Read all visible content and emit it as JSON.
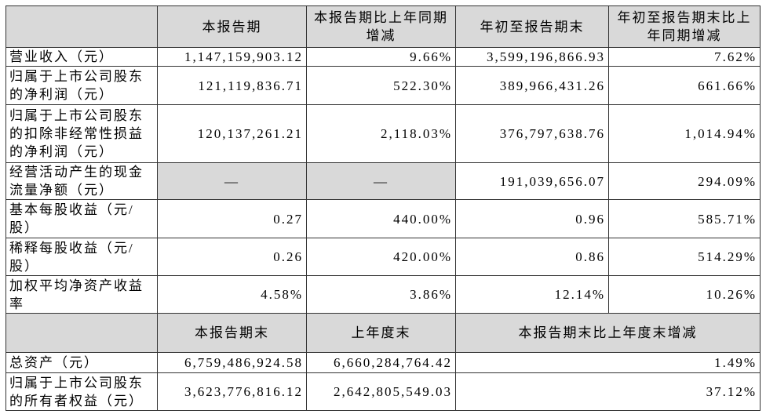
{
  "table": {
    "header": [
      "本报告期",
      "本报告期比上年同期增减",
      "年初至报告期末",
      "年初至报告期末比上年同期增减"
    ],
    "rows": [
      [
        "营业收入（元）",
        "1,147,159,903.12",
        "9.66%",
        "3,599,196,866.93",
        "7.62%"
      ],
      [
        "归属于上市公司股东的净利润（元）",
        "121,119,836.71",
        "522.30%",
        "389,966,431.26",
        "661.66%"
      ],
      [
        "归属于上市公司股东的扣除非经常性损益的净利润（元）",
        "120,137,261.21",
        "2,118.03%",
        "376,797,638.76",
        "1,014.94%"
      ],
      [
        "经营活动产生的现金流量净额（元）",
        "—",
        "—",
        "191,039,656.07",
        "294.09%"
      ],
      [
        "基本每股收益（元/股）",
        "0.27",
        "440.00%",
        "0.96",
        "585.71%"
      ],
      [
        "稀释每股收益（元/股）",
        "0.26",
        "420.00%",
        "0.86",
        "514.29%"
      ],
      [
        "加权平均净资产收益率",
        "4.58%",
        "3.86%",
        "12.14%",
        "10.26%"
      ]
    ],
    "header2": [
      "本报告期末",
      "上年度末",
      "本报告期末比上年度末增减"
    ],
    "rows2": [
      [
        "总资产（元）",
        "6,759,486,924.58",
        "6,660,284,764.42",
        "1.49%"
      ],
      [
        "归属于上市公司股东的所有者权益（元）",
        "3,623,776,816.12",
        "2,642,805,549.03",
        "37.12%"
      ]
    ]
  }
}
